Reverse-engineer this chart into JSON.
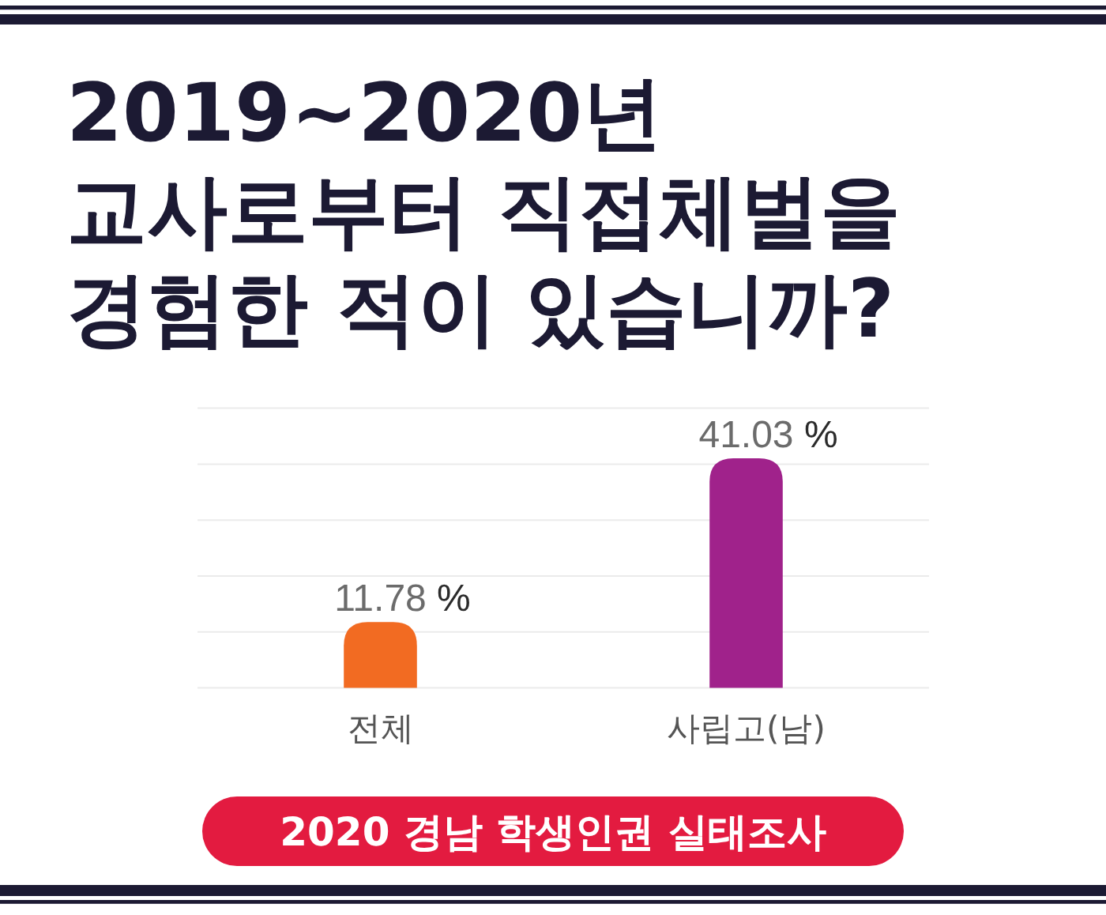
{
  "chart_data": {
    "type": "bar",
    "title": "2019~2020년\n교사로부터 직접체벌을\n경험한 적이 있습니까?",
    "categories": [
      "전체",
      "사립고(남)"
    ],
    "values": [
      11.78,
      41.03
    ],
    "colors": [
      "#f26b22",
      "#a0228b"
    ],
    "value_labels": [
      "11.78 %",
      "41.03 %"
    ],
    "ylim": [
      0,
      50
    ],
    "yticks": [
      {
        "value": 0,
        "label": null
      },
      {
        "value": 10,
        "label": null
      },
      {
        "value": 20,
        "label": null
      },
      {
        "value": 30,
        "label": null
      },
      {
        "value": 40,
        "label": null
      },
      {
        "value": 50,
        "label": null
      }
    ],
    "grid": "y",
    "tick_labels": "x",
    "annotations": [
      "2020 경남 학생인권 실태조사"
    ]
  }
}
